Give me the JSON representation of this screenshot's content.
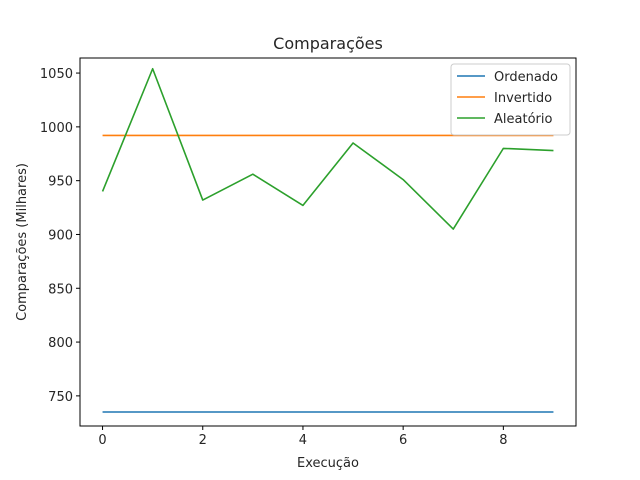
{
  "chart_data": {
    "type": "line",
    "title": "Comparações",
    "xlabel": "Execução",
    "ylabel": "Comparações (Milhares)",
    "xlim": [
      -0.45,
      9.45
    ],
    "ylim": [
      722,
      1064
    ],
    "x": [
      0,
      1,
      2,
      3,
      4,
      5,
      6,
      7,
      8,
      9
    ],
    "xticks": [
      0,
      2,
      4,
      6,
      8
    ],
    "xtick_labels": [
      "0",
      "2",
      "4",
      "6",
      "8"
    ],
    "yticks": [
      750,
      800,
      850,
      900,
      950,
      1000,
      1050
    ],
    "ytick_labels": [
      "750",
      "800",
      "850",
      "900",
      "950",
      "1000",
      "1050"
    ],
    "grid": false,
    "legend_position": "top-right",
    "series": [
      {
        "name": "Ordenado",
        "color": "#1f77b4",
        "values": [
          735,
          735,
          735,
          735,
          735,
          735,
          735,
          735,
          735,
          735
        ]
      },
      {
        "name": "Invertido",
        "color": "#ff7f0e",
        "values": [
          992,
          992,
          992,
          992,
          992,
          992,
          992,
          992,
          992,
          992
        ]
      },
      {
        "name": "Aleatório",
        "color": "#2ca02c",
        "values": [
          940,
          1054,
          932,
          956,
          927,
          985,
          951,
          905,
          980,
          978
        ]
      }
    ]
  }
}
